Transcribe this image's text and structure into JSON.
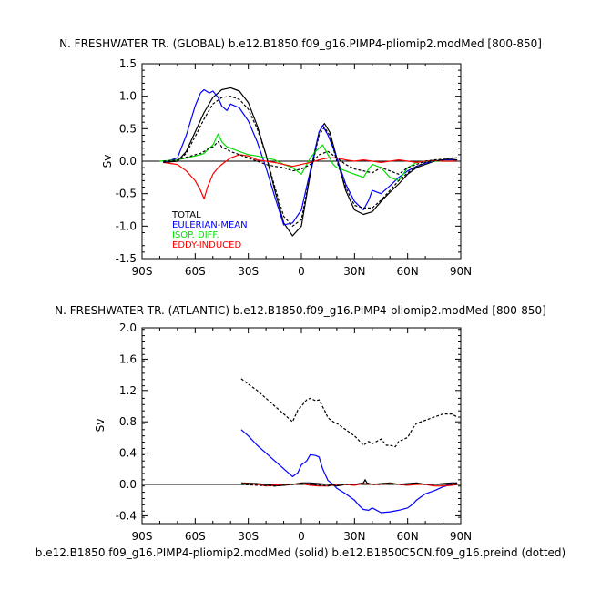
{
  "footer": "b.e12.B1850.f09_g16.PIMP4-pliomip2.modMed (solid) b.e12.B1850C5CN.f09_g16.preind (dotted)",
  "colors": {
    "total": "#000000",
    "eulerian": "#0000ff",
    "isop": "#00dd00",
    "eddy": "#ff0000"
  },
  "chart_data": [
    {
      "type": "line",
      "title": "N. FRESHWATER TR. (GLOBAL) b.e12.B1850.f09_g16.PIMP4-pliomip2.modMed [800-850]",
      "ylabel": "Sv",
      "xlim": [
        -90,
        90
      ],
      "ylim": [
        -1.5,
        1.5
      ],
      "x_ticks": [
        -90,
        -60,
        -30,
        0,
        30,
        60,
        90
      ],
      "x_tick_labels": [
        "90S",
        "60S",
        "30S",
        "0",
        "30N",
        "60N",
        "90N"
      ],
      "y_ticks": [
        -1.5,
        -1.0,
        -0.5,
        0.0,
        0.5,
        1.0,
        1.5
      ],
      "y_tick_labels": [
        "-1.5",
        "-1.0",
        "-0.5",
        "0.0",
        "0.5",
        "1.0",
        "1.5"
      ],
      "legend": [
        "TOTAL",
        "EULERIAN-MEAN",
        "ISOP. DIFF.",
        "EDDY-INDUCED"
      ],
      "series": [
        {
          "name": "TOTAL",
          "color": "#000000",
          "dash": false,
          "x": [
            -78,
            -70,
            -65,
            -60,
            -55,
            -50,
            -45,
            -40,
            -35,
            -30,
            -25,
            -20,
            -15,
            -10,
            -5,
            0,
            5,
            10,
            13,
            16,
            20,
            25,
            30,
            35,
            40,
            45,
            50,
            55,
            60,
            65,
            70,
            75,
            80,
            85,
            88
          ],
          "y": [
            -0.02,
            0.0,
            0.15,
            0.45,
            0.75,
            0.98,
            1.1,
            1.13,
            1.08,
            0.9,
            0.55,
            0.1,
            -0.45,
            -0.95,
            -1.15,
            -1.0,
            -0.2,
            0.45,
            0.58,
            0.45,
            0.05,
            -0.45,
            -0.75,
            -0.82,
            -0.78,
            -0.62,
            -0.48,
            -0.35,
            -0.2,
            -0.1,
            -0.05,
            0.0,
            0.02,
            0.03,
            0.02
          ]
        },
        {
          "name": "EULERIAN-MEAN",
          "color": "#0000ff",
          "dash": false,
          "x": [
            -78,
            -70,
            -65,
            -60,
            -57,
            -55,
            -52,
            -50,
            -47,
            -45,
            -42,
            -40,
            -35,
            -30,
            -25,
            -20,
            -15,
            -10,
            -5,
            0,
            5,
            10,
            12,
            15,
            18,
            20,
            25,
            30,
            35,
            38,
            40,
            45,
            50,
            55,
            60,
            65,
            70,
            75,
            80,
            85,
            88
          ],
          "y": [
            -0.02,
            0.05,
            0.4,
            0.85,
            1.05,
            1.1,
            1.05,
            1.08,
            0.98,
            0.85,
            0.78,
            0.88,
            0.82,
            0.62,
            0.3,
            -0.1,
            -0.55,
            -0.98,
            -0.95,
            -0.75,
            -0.15,
            0.45,
            0.55,
            0.4,
            0.2,
            0.05,
            -0.35,
            -0.62,
            -0.75,
            -0.6,
            -0.45,
            -0.5,
            -0.38,
            -0.25,
            -0.15,
            -0.08,
            -0.03,
            0.0,
            0.02,
            0.02,
            0.0
          ]
        },
        {
          "name": "ISOP. DIFF.",
          "color": "#00dd00",
          "dash": false,
          "x": [
            -80,
            -70,
            -65,
            -60,
            -57,
            -55,
            -52,
            -50,
            -47,
            -45,
            -42,
            -40,
            -35,
            -30,
            -25,
            -20,
            -15,
            -10,
            -5,
            0,
            3,
            5,
            8,
            10,
            12,
            15,
            18,
            20,
            25,
            30,
            35,
            38,
            40,
            45,
            50,
            55,
            60,
            65,
            70,
            75,
            80,
            85,
            88
          ],
          "y": [
            0.0,
            0.02,
            0.05,
            0.08,
            0.1,
            0.12,
            0.2,
            0.25,
            0.42,
            0.3,
            0.22,
            0.2,
            0.15,
            0.1,
            0.08,
            0.05,
            0.02,
            -0.05,
            -0.1,
            -0.2,
            -0.05,
            0.05,
            0.15,
            0.2,
            0.25,
            0.1,
            -0.05,
            -0.1,
            -0.15,
            -0.2,
            -0.25,
            -0.12,
            -0.05,
            -0.1,
            -0.25,
            -0.3,
            -0.1,
            -0.02,
            0.0,
            0.0,
            0.0,
            0.0,
            0.0
          ]
        },
        {
          "name": "EDDY-INDUCED",
          "color": "#ff0000",
          "dash": false,
          "x": [
            -78,
            -70,
            -65,
            -60,
            -57,
            -55,
            -53,
            -50,
            -47,
            -45,
            -40,
            -35,
            -30,
            -25,
            -20,
            -15,
            -10,
            -5,
            0,
            5,
            10,
            15,
            20,
            25,
            30,
            35,
            40,
            45,
            50,
            55,
            60,
            65,
            70,
            75,
            80,
            85,
            88
          ],
          "y": [
            -0.02,
            -0.05,
            -0.15,
            -0.3,
            -0.45,
            -0.58,
            -0.4,
            -0.2,
            -0.1,
            -0.05,
            0.05,
            0.1,
            0.08,
            0.02,
            0.0,
            -0.02,
            -0.05,
            -0.08,
            -0.05,
            -0.02,
            0.02,
            0.05,
            0.05,
            0.02,
            0.0,
            0.02,
            0.0,
            -0.02,
            0.0,
            0.02,
            0.0,
            -0.02,
            0.0,
            0.01,
            0.0,
            0.0,
            0.0
          ]
        },
        {
          "name": "",
          "color": "#000000",
          "dash": true,
          "x": [
            -78,
            -70,
            -65,
            -60,
            -55,
            -50,
            -45,
            -40,
            -35,
            -30,
            -25,
            -20,
            -15,
            -10,
            -5,
            0,
            5,
            10,
            13,
            16,
            20,
            25,
            30,
            35,
            40,
            45,
            50,
            55,
            60,
            65,
            70,
            75,
            80,
            85,
            88
          ],
          "y": [
            -0.02,
            0.0,
            0.12,
            0.38,
            0.65,
            0.88,
            0.98,
            1.0,
            0.95,
            0.8,
            0.5,
            0.1,
            -0.4,
            -0.85,
            -1.0,
            -0.9,
            -0.2,
            0.4,
            0.52,
            0.4,
            0.0,
            -0.4,
            -0.68,
            -0.72,
            -0.72,
            -0.6,
            -0.45,
            -0.3,
            -0.18,
            -0.08,
            -0.02,
            0.0,
            0.02,
            0.05,
            0.05
          ]
        },
        {
          "name": "",
          "color": "#000000",
          "dash": true,
          "x": [
            -78,
            -70,
            -65,
            -60,
            -57,
            -55,
            -52,
            -50,
            -47,
            -45,
            -40,
            -35,
            -30,
            -25,
            -20,
            -15,
            -10,
            -5,
            0,
            5,
            10,
            15,
            20,
            25,
            30,
            35,
            40,
            45,
            50,
            55,
            60,
            65,
            70,
            75,
            80,
            85,
            88
          ],
          "y": [
            0.0,
            0.02,
            0.06,
            0.1,
            0.12,
            0.15,
            0.2,
            0.22,
            0.3,
            0.22,
            0.15,
            0.1,
            0.05,
            0.0,
            -0.05,
            -0.08,
            -0.1,
            -0.15,
            -0.12,
            -0.05,
            0.1,
            0.15,
            0.05,
            -0.05,
            -0.12,
            -0.15,
            -0.18,
            -0.1,
            -0.15,
            -0.2,
            -0.1,
            -0.05,
            0.0,
            0.02,
            0.03,
            0.03,
            0.02
          ]
        }
      ]
    },
    {
      "type": "line",
      "title": "N. FRESHWATER TR. (ATLANTIC) b.e12.B1850.f09_g16.PIMP4-pliomip2.modMed [800-850]",
      "ylabel": "Sv",
      "xlim": [
        -90,
        90
      ],
      "ylim": [
        -0.5,
        2.0
      ],
      "x_ticks": [
        -90,
        -60,
        -30,
        0,
        30,
        60,
        90
      ],
      "x_tick_labels": [
        "90S",
        "60S",
        "30S",
        "0",
        "30N",
        "60N",
        "90N"
      ],
      "y_ticks": [
        -0.4,
        0.0,
        0.4,
        0.8,
        1.2,
        1.6,
        2.0
      ],
      "y_tick_labels": [
        "-0.4",
        "0.0",
        "0.4",
        "0.8",
        "1.2",
        "1.6",
        "2.0"
      ],
      "series": [
        {
          "name": "",
          "color": "#0000ff",
          "dash": false,
          "x": [
            -34,
            -30,
            -25,
            -20,
            -15,
            -10,
            -5,
            -2,
            0,
            3,
            5,
            8,
            10,
            12,
            15,
            18,
            20,
            25,
            30,
            33,
            35,
            38,
            40,
            45,
            50,
            55,
            60,
            63,
            65,
            70,
            75,
            80,
            85,
            88
          ],
          "y": [
            0.7,
            0.62,
            0.5,
            0.4,
            0.3,
            0.2,
            0.1,
            0.15,
            0.25,
            0.3,
            0.38,
            0.37,
            0.35,
            0.2,
            0.05,
            0.0,
            -0.05,
            -0.12,
            -0.2,
            -0.28,
            -0.32,
            -0.33,
            -0.3,
            -0.36,
            -0.35,
            -0.33,
            -0.3,
            -0.25,
            -0.2,
            -0.12,
            -0.08,
            -0.03,
            0.0,
            0.02
          ]
        },
        {
          "name": "",
          "color": "#000000",
          "dash": false,
          "x": [
            -34,
            -25,
            -20,
            -15,
            -10,
            -5,
            0,
            5,
            10,
            15,
            20,
            25,
            30,
            35,
            36,
            37,
            40,
            45,
            50,
            55,
            60,
            65,
            70,
            75,
            80,
            85,
            88
          ],
          "y": [
            0.02,
            0.01,
            0.0,
            -0.02,
            -0.01,
            0.0,
            0.02,
            0.02,
            0.01,
            0.0,
            -0.02,
            0.0,
            0.0,
            0.02,
            0.06,
            0.02,
            0.0,
            0.01,
            0.02,
            0.0,
            0.01,
            0.02,
            0.0,
            0.0,
            0.01,
            0.02,
            0.02
          ]
        },
        {
          "name": "",
          "color": "#ff0000",
          "dash": false,
          "x": [
            -34,
            -25,
            -20,
            -15,
            -10,
            -5,
            0,
            5,
            10,
            15,
            20,
            25,
            30,
            35,
            40,
            45,
            50,
            55,
            60,
            65,
            70,
            75,
            80,
            85,
            88
          ],
          "y": [
            0.01,
            0.0,
            -0.02,
            -0.01,
            0.0,
            0.0,
            0.01,
            -0.01,
            -0.02,
            -0.02,
            0.0,
            0.0,
            -0.01,
            0.01,
            0.0,
            0.0,
            0.01,
            0.0,
            -0.01,
            0.0,
            0.0,
            -0.02,
            -0.02,
            -0.01,
            0.0
          ]
        },
        {
          "name": "",
          "color": "#000000",
          "dash": true,
          "x": [
            -34,
            -30,
            -25,
            -20,
            -15,
            -10,
            -5,
            -2,
            0,
            3,
            5,
            8,
            10,
            13,
            15,
            18,
            20,
            25,
            30,
            33,
            35,
            38,
            40,
            45,
            48,
            50,
            53,
            55,
            60,
            63,
            65,
            70,
            75,
            80,
            85,
            88
          ],
          "y": [
            1.35,
            1.28,
            1.2,
            1.1,
            1.0,
            0.9,
            0.8,
            0.95,
            1.0,
            1.08,
            1.1,
            1.07,
            1.08,
            0.95,
            0.85,
            0.8,
            0.78,
            0.7,
            0.62,
            0.55,
            0.5,
            0.55,
            0.52,
            0.58,
            0.5,
            0.5,
            0.48,
            0.55,
            0.6,
            0.72,
            0.78,
            0.82,
            0.86,
            0.9,
            0.9,
            0.86
          ]
        },
        {
          "name": "",
          "color": "#000000",
          "dash": true,
          "x": [
            -34,
            -25,
            -15,
            -5,
            0,
            5,
            10,
            15,
            20,
            25,
            30,
            35,
            40,
            45,
            50,
            55,
            60,
            65,
            70,
            75,
            80,
            85,
            88
          ],
          "y": [
            0.0,
            -0.01,
            -0.02,
            0.0,
            0.01,
            0.0,
            -0.01,
            -0.02,
            0.0,
            0.0,
            0.0,
            0.01,
            0.0,
            0.0,
            0.01,
            0.0,
            0.0,
            0.01,
            0.0,
            0.0,
            0.0,
            0.0,
            0.0
          ]
        }
      ]
    }
  ]
}
